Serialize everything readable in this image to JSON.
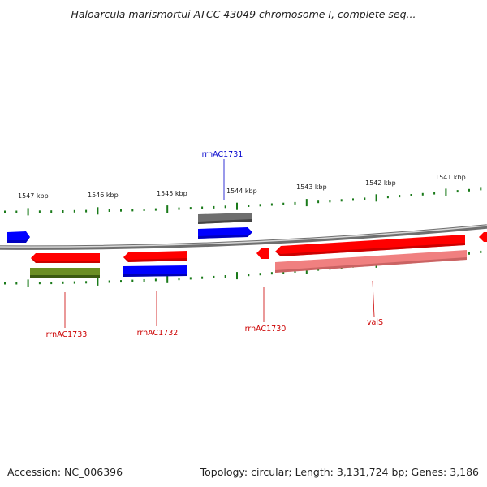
{
  "title": "Haloarcula marismortui ATCC 43049 chromosome I, complete seq...",
  "footer": {
    "accession": "Accession: NC_006396",
    "summary": "Topology: circular; Length: 3,131,724 bp; Genes: 3,186"
  },
  "colors": {
    "forward_gene": "#0000ff",
    "reverse_gene": "#ff0000",
    "rna_gene": "#6e6e6e",
    "cds_olive": "#6b8e23",
    "cds_pink": "#f08080",
    "backbone": "#8a8a8a",
    "tick": "#1a7a1a",
    "label_forward": "#0000cc",
    "label_reverse": "#cc0000"
  },
  "ticks": [
    "1547 kbp",
    "1546 kbp",
    "1545 kbp",
    "1544 kbp",
    "1543 kbp",
    "1542 kbp",
    "1541 kbp"
  ],
  "genes": [
    {
      "label": "rrnAC1731",
      "strand": "forward"
    },
    {
      "label": "rrnAC1733",
      "strand": "reverse"
    },
    {
      "label": "rrnAC1732",
      "strand": "reverse"
    },
    {
      "label": "rrnAC1730",
      "strand": "reverse"
    },
    {
      "label": "valS",
      "strand": "reverse"
    }
  ]
}
